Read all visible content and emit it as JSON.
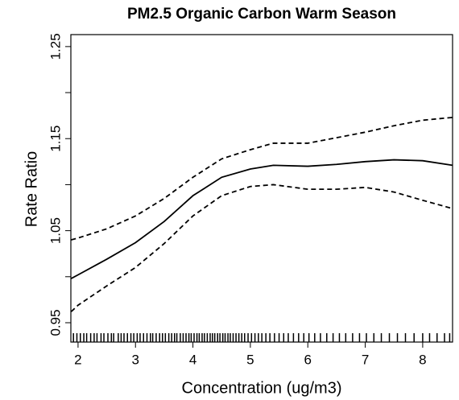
{
  "chart_data": {
    "type": "line",
    "title": "PM2.5 Organic Carbon Warm Season",
    "x_label": "Concentration (ug/m3)",
    "y_label": "Rate Ratio",
    "xlim": [
      1.875,
      8.52
    ],
    "xticks": [
      2,
      3,
      4,
      5,
      6,
      7,
      8
    ],
    "ylim": [
      0.929,
      1.263
    ],
    "yticks": [
      0.95,
      1.05,
      1.15,
      1.25
    ],
    "yminor_ticks": [
      1.0,
      1.1,
      1.2
    ],
    "series": [
      {
        "name": "estimate",
        "color": "#000000",
        "dash": false,
        "x": [
          1.88,
          2,
          2.5,
          3,
          3.5,
          4,
          4.5,
          5,
          5.4,
          6,
          6.5,
          7,
          7.5,
          8,
          8.52
        ],
        "values": [
          0.998,
          1.002,
          1.019,
          1.037,
          1.06,
          1.088,
          1.108,
          1.117,
          1.121,
          1.12,
          1.122,
          1.125,
          1.127,
          1.126,
          1.121
        ]
      },
      {
        "name": "upper",
        "color": "#000000",
        "dash": true,
        "x": [
          1.88,
          2,
          2.5,
          3,
          3.5,
          4,
          4.5,
          5,
          5.4,
          6,
          6.5,
          7,
          7.5,
          8,
          8.52
        ],
        "values": [
          1.04,
          1.042,
          1.052,
          1.066,
          1.085,
          1.108,
          1.128,
          1.138,
          1.145,
          1.145,
          1.151,
          1.157,
          1.164,
          1.17,
          1.173
        ]
      },
      {
        "name": "lower",
        "color": "#000000",
        "dash": true,
        "x": [
          1.88,
          2,
          2.5,
          3,
          3.5,
          4,
          4.5,
          5,
          5.4,
          6,
          6.5,
          7,
          7.5,
          8,
          8.52
        ],
        "values": [
          0.962,
          0.969,
          0.99,
          1.01,
          1.036,
          1.066,
          1.088,
          1.098,
          1.1,
          1.095,
          1.095,
          1.097,
          1.092,
          1.083,
          1.074
        ]
      }
    ],
    "rug": [
      1.92,
      1.98,
      2.04,
      2.1,
      2.15,
      2.22,
      2.28,
      2.33,
      2.4,
      2.45,
      2.52,
      2.58,
      2.62,
      2.7,
      2.75,
      2.8,
      2.86,
      2.92,
      2.97,
      3.03,
      3.08,
      3.14,
      3.2,
      3.26,
      3.3,
      3.36,
      3.42,
      3.47,
      3.52,
      3.58,
      3.63,
      3.68,
      3.72,
      3.78,
      3.83,
      3.88,
      3.93,
      3.97,
      4.02,
      4.07,
      4.11,
      4.16,
      4.2,
      4.25,
      4.3,
      4.34,
      4.38,
      4.43,
      4.47,
      4.52,
      4.56,
      4.61,
      4.65,
      4.7,
      4.75,
      4.8,
      4.85,
      4.9,
      4.96,
      5.02,
      5.08,
      5.14,
      5.2,
      5.27,
      5.34,
      5.42,
      5.5,
      5.58,
      5.66,
      5.75,
      5.84,
      5.93,
      6.02,
      6.12,
      6.22,
      6.33,
      6.44,
      6.55,
      6.66,
      6.78,
      6.9,
      7.02,
      7.15,
      7.28,
      7.42,
      7.56,
      7.7,
      7.85,
      8.0,
      8.12,
      8.25,
      8.38,
      8.47
    ]
  }
}
